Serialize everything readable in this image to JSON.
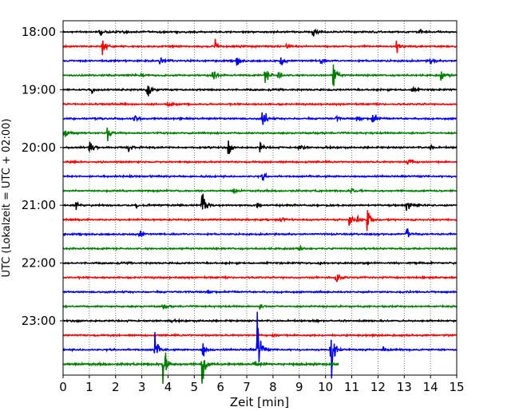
{
  "chart_data": {
    "type": "line",
    "chart_kind": "helicorder",
    "xlabel": "Zeit  [min]",
    "ylabel": "UTC (Lokalzeit = UTC + 02:00)",
    "xlim": [
      0,
      15
    ],
    "x_ticks": [
      0,
      1,
      2,
      3,
      4,
      5,
      6,
      7,
      8,
      9,
      10,
      11,
      12,
      13,
      14,
      15
    ],
    "x_grid": "dotted vertical at each minute",
    "y_tick_labels": [
      "18:00",
      "19:00",
      "20:00",
      "21:00",
      "22:00",
      "23:00"
    ],
    "trace_interval_minutes": 15,
    "trace_colors": [
      "#000000",
      "#ff0000",
      "#0000ff",
      "#008000"
    ],
    "traces": [
      {
        "start": "18:00",
        "events": [
          [
            1.4,
            0.6
          ],
          [
            2.3,
            0.4
          ],
          [
            9.5,
            1.1
          ],
          [
            13.6,
            0.5
          ]
        ]
      },
      {
        "start": "18:15",
        "events": [
          [
            1.5,
            1.6
          ],
          [
            5.8,
            0.9
          ],
          [
            12.7,
            1.6
          ],
          [
            8.5,
            0.3
          ]
        ]
      },
      {
        "start": "18:30",
        "events": [
          [
            3.7,
            1.6
          ],
          [
            6.6,
            0.9
          ],
          [
            8.3,
            0.8
          ],
          [
            9.8,
            0.7
          ],
          [
            14.0,
            0.6
          ]
        ]
      },
      {
        "start": "18:45",
        "events": [
          [
            5.7,
            1.2
          ],
          [
            7.7,
            1.4
          ],
          [
            8.2,
            0.9
          ],
          [
            10.3,
            2.8
          ],
          [
            14.4,
            1.0
          ],
          [
            3.0,
            0.4
          ]
        ]
      },
      {
        "start": "19:00",
        "events": [
          [
            3.2,
            2.4
          ],
          [
            1.1,
            0.7
          ],
          [
            13.3,
            0.5
          ]
        ]
      },
      {
        "start": "19:15",
        "events": [
          [
            4.0,
            0.3
          ]
        ]
      },
      {
        "start": "19:30",
        "events": [
          [
            2.7,
            0.9
          ],
          [
            7.6,
            2.2
          ],
          [
            11.8,
            1.4
          ],
          [
            11.2,
            0.5
          ],
          [
            10.4,
            0.4
          ]
        ]
      },
      {
        "start": "19:45",
        "events": [
          [
            0.05,
            1.4
          ],
          [
            1.7,
            1.6
          ]
        ]
      },
      {
        "start": "20:00",
        "events": [
          [
            1.0,
            1.4
          ],
          [
            2.5,
            0.9
          ],
          [
            6.3,
            1.2
          ],
          [
            7.5,
            0.8
          ],
          [
            9.0,
            0.8
          ],
          [
            14.0,
            0.4
          ]
        ]
      },
      {
        "start": "20:15",
        "events": [
          [
            13.1,
            1.4
          ]
        ]
      },
      {
        "start": "20:30",
        "events": [
          [
            7.6,
            0.6
          ]
        ]
      },
      {
        "start": "20:45",
        "events": [
          [
            11.0,
            0.6
          ],
          [
            6.5,
            0.4
          ]
        ]
      },
      {
        "start": "21:00",
        "events": [
          [
            0.5,
            0.9
          ],
          [
            2.8,
            0.7
          ],
          [
            5.3,
            2.8
          ],
          [
            13.1,
            1.3
          ],
          [
            7.4,
            0.4
          ]
        ]
      },
      {
        "start": "21:15",
        "events": [
          [
            11.6,
            3.0
          ],
          [
            10.9,
            1.2
          ],
          [
            11.2,
            0.7
          ],
          [
            8.3,
            0.4
          ]
        ]
      },
      {
        "start": "21:30",
        "events": [
          [
            2.9,
            0.9
          ],
          [
            13.1,
            1.0
          ]
        ]
      },
      {
        "start": "21:45",
        "events": [
          [
            9.0,
            0.3
          ]
        ]
      },
      {
        "start": "22:00",
        "events": [
          [
            9.8,
            0.3
          ]
        ]
      },
      {
        "start": "22:15",
        "events": [
          [
            10.4,
            0.7
          ]
        ]
      },
      {
        "start": "22:30",
        "events": [
          [
            5.5,
            0.3
          ]
        ]
      },
      {
        "start": "22:45",
        "events": [
          [
            3.8,
            0.6
          ],
          [
            7.5,
            0.4
          ]
        ]
      },
      {
        "start": "23:00",
        "events": [
          [
            4.0,
            0.3
          ]
        ]
      },
      {
        "start": "23:15",
        "events": [
          [
            8.0,
            0.3
          ]
        ]
      },
      {
        "start": "23:30",
        "events": [
          [
            3.5,
            2.5
          ],
          [
            5.3,
            2.0
          ],
          [
            7.4,
            6.5
          ],
          [
            10.2,
            7.5
          ],
          [
            12.2,
            0.5
          ]
        ]
      },
      {
        "start": "23:45",
        "end_minute": 10.5,
        "events": [
          [
            3.8,
            4.0
          ],
          [
            5.3,
            3.5
          ],
          [
            7.3,
            0.5
          ]
        ]
      }
    ]
  }
}
